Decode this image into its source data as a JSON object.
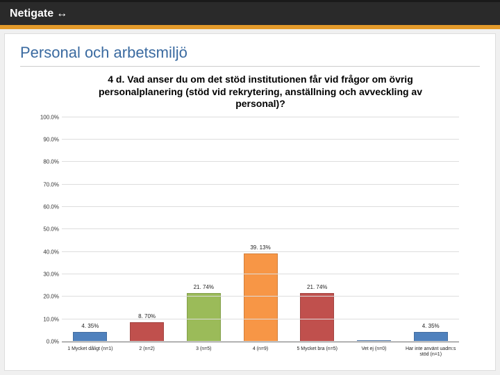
{
  "header": {
    "brand": "Netigate",
    "icon_glyph": "↔"
  },
  "slide": {
    "title": "Personal och arbetsmiljö",
    "title_color": "#3a6aa0"
  },
  "chart": {
    "type": "bar",
    "title": "4 d. Vad anser du om det stöd institutionen får vid frågor om övrig personalplanering (stöd vid rekrytering, anställning och avveckling av personal)?",
    "title_fontsize": 14,
    "ylim": [
      0,
      100
    ],
    "ytick_step": 10,
    "yticks": [
      "0.0%",
      "10.0%",
      "20.0%",
      "30.0%",
      "40.0%",
      "50.0%",
      "60.0%",
      "70.0%",
      "80.0%",
      "90.0%",
      "100.0%"
    ],
    "grid_color": "#dddddd",
    "axis_color": "#888888",
    "background_color": "#ffffff",
    "label_fontsize": 8,
    "xlabel_fontsize": 7,
    "bar_width_pct": 60,
    "bars": [
      {
        "label": "1 Mycket dåligt (n=1)",
        "value": 4.35,
        "value_label": "4. 35%",
        "color": "#4f81bd"
      },
      {
        "label": "2 (n=2)",
        "value": 8.7,
        "value_label": "8. 70%",
        "color": "#c0504d"
      },
      {
        "label": "3 (n=5)",
        "value": 21.74,
        "value_label": "21. 74%",
        "color": "#9bbb59"
      },
      {
        "label": "4 (n=9)",
        "value": 39.13,
        "value_label": "39. 13%",
        "color": "#f79646"
      },
      {
        "label": "5 Mycket bra (n=5)",
        "value": 21.74,
        "value_label": "21. 74%",
        "color": "#c0504d"
      },
      {
        "label": "Vet ej (n=0)",
        "value": 0,
        "value_label": "",
        "color": "#4f81bd"
      },
      {
        "label": "Har inte använt uadm:s stöd (n=1)",
        "value": 4.35,
        "value_label": "4. 35%",
        "color": "#4f81bd"
      }
    ]
  }
}
